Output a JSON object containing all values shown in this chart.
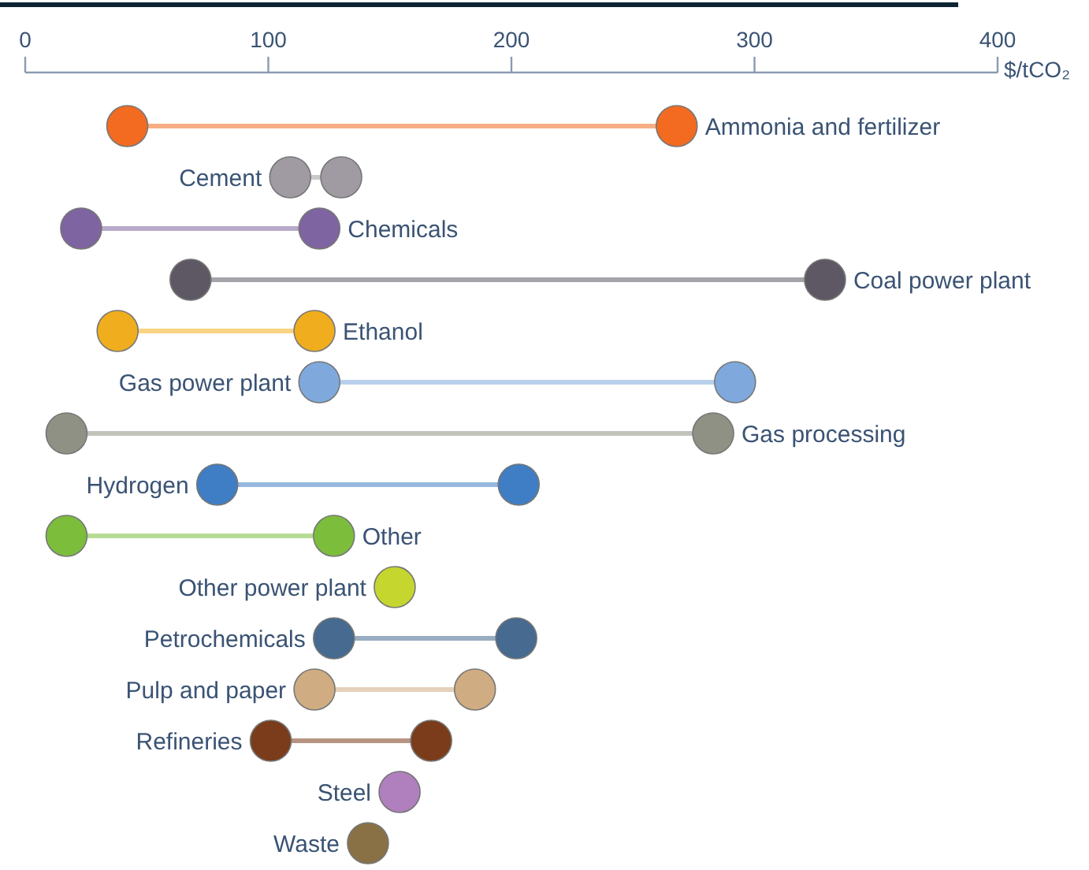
{
  "chart_data": {
    "type": "scatter",
    "orientation": "horizontal",
    "xlabel": "$/tCO₂",
    "xlim": [
      0,
      400
    ],
    "xticks": [
      0,
      100,
      200,
      300,
      400
    ],
    "marker": "circle",
    "categories": [
      "Ammonia and fertilizer",
      "Cement",
      "Chemicals",
      "Coal power plant",
      "Ethanol",
      "Gas power plant",
      "Gas processing",
      "Hydrogen",
      "Other",
      "Other power plant",
      "Petrochemicals",
      "Pulp and paper",
      "Refineries",
      "Steel",
      "Waste"
    ],
    "series": [
      {
        "values": [
          42,
          109,
          23,
          68,
          38,
          121,
          17,
          79,
          17,
          152,
          127,
          119,
          101,
          154,
          141
        ],
        "colors": [
          "#f26b21",
          "#a09ba2",
          "#7e64a0",
          "#5d5863",
          "#f0ae1e",
          "#7fa9dc",
          "#8f9184",
          "#3f7dc4",
          "#7cbd3c",
          "#c5d72e",
          "#466a90",
          "#d0ac82",
          "#7a3c1a",
          "#b07fbd",
          "#8a7045"
        ]
      },
      {
        "values": [
          268,
          130,
          121,
          329,
          119,
          292,
          283,
          203,
          127,
          null,
          202,
          185,
          167,
          null,
          null
        ],
        "colors": [
          "#f26b21",
          "#a09ba2",
          "#7e64a0",
          "#5d5863",
          "#f0ae1e",
          "#7fa9dc",
          "#8f9184",
          "#3f7dc4",
          "#7cbd3c",
          null,
          "#466a90",
          "#d0ac82",
          "#7a3c1a",
          null,
          null
        ]
      }
    ]
  }
}
